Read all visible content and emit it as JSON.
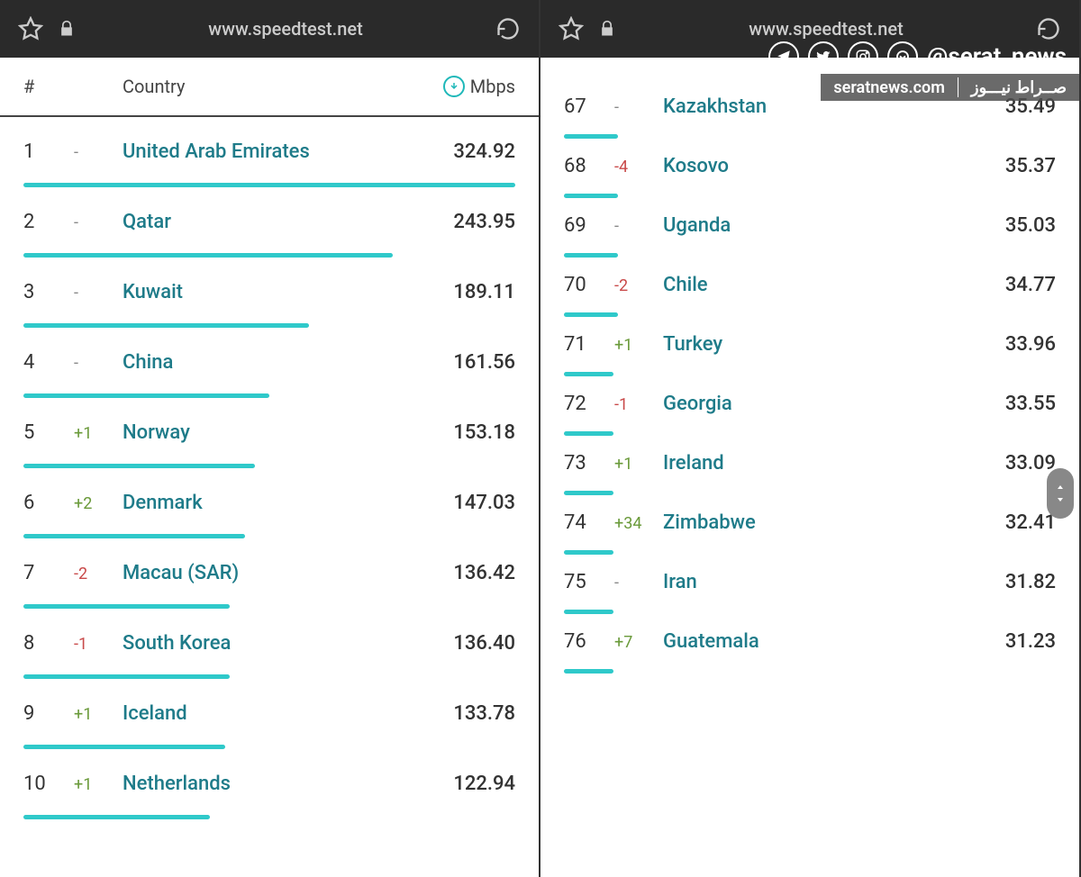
{
  "browser": {
    "url": "www.speedtest.net"
  },
  "header": {
    "rank": "#",
    "country": "Country",
    "mbps": "Mbps"
  },
  "maxSpeed": 324.92,
  "left": [
    {
      "rank": "1",
      "change": "-",
      "changeClass": "none",
      "country": "United Arab Emirates",
      "value": "324.92",
      "barPct": 100
    },
    {
      "rank": "2",
      "change": "-",
      "changeClass": "none",
      "country": "Qatar",
      "value": "243.95",
      "barPct": 75
    },
    {
      "rank": "3",
      "change": "-",
      "changeClass": "none",
      "country": "Kuwait",
      "value": "189.11",
      "barPct": 58
    },
    {
      "rank": "4",
      "change": "-",
      "changeClass": "none",
      "country": "China",
      "value": "161.56",
      "barPct": 50
    },
    {
      "rank": "5",
      "change": "+1",
      "changeClass": "pos",
      "country": "Norway",
      "value": "153.18",
      "barPct": 47
    },
    {
      "rank": "6",
      "change": "+2",
      "changeClass": "pos",
      "country": "Denmark",
      "value": "147.03",
      "barPct": 45
    },
    {
      "rank": "7",
      "change": "-2",
      "changeClass": "neg",
      "country": "Macau (SAR)",
      "value": "136.42",
      "barPct": 42
    },
    {
      "rank": "8",
      "change": "-1",
      "changeClass": "neg",
      "country": "South Korea",
      "value": "136.40",
      "barPct": 42
    },
    {
      "rank": "9",
      "change": "+1",
      "changeClass": "pos",
      "country": "Iceland",
      "value": "133.78",
      "barPct": 41
    },
    {
      "rank": "10",
      "change": "+1",
      "changeClass": "pos",
      "country": "Netherlands",
      "value": "122.94",
      "barPct": 38
    }
  ],
  "right": [
    {
      "rank": "67",
      "change": "-",
      "changeClass": "none",
      "country": "Kazakhstan",
      "value": "35.49",
      "barPct": 11
    },
    {
      "rank": "68",
      "change": "-4",
      "changeClass": "neg",
      "country": "Kosovo",
      "value": "35.37",
      "barPct": 11
    },
    {
      "rank": "69",
      "change": "-",
      "changeClass": "none",
      "country": "Uganda",
      "value": "35.03",
      "barPct": 11
    },
    {
      "rank": "70",
      "change": "-2",
      "changeClass": "neg",
      "country": "Chile",
      "value": "34.77",
      "barPct": 11
    },
    {
      "rank": "71",
      "change": "+1",
      "changeClass": "pos",
      "country": "Turkey",
      "value": "33.96",
      "barPct": 10
    },
    {
      "rank": "72",
      "change": "-1",
      "changeClass": "neg",
      "country": "Georgia",
      "value": "33.55",
      "barPct": 10
    },
    {
      "rank": "73",
      "change": "+1",
      "changeClass": "pos",
      "country": "Ireland",
      "value": "33.09",
      "barPct": 10
    },
    {
      "rank": "74",
      "change": "+34",
      "changeClass": "pos",
      "country": "Zimbabwe",
      "value": "32.41",
      "barPct": 10
    },
    {
      "rank": "75",
      "change": "-",
      "changeClass": "none",
      "country": "Iran",
      "value": "31.82",
      "barPct": 10
    },
    {
      "rank": "76",
      "change": "+7",
      "changeClass": "pos",
      "country": "Guatemala",
      "value": "31.23",
      "barPct": 10
    }
  ],
  "watermark": {
    "handle": "@serat_news",
    "site": "seratnews.com",
    "arabic": "صــراط نیـــوز"
  },
  "colors": {
    "bar": "#2fc9ca",
    "country": "#1e7b89",
    "pos": "#6a9a3a",
    "neg": "#c94a4a",
    "browserBar": "#2a2a2a"
  }
}
